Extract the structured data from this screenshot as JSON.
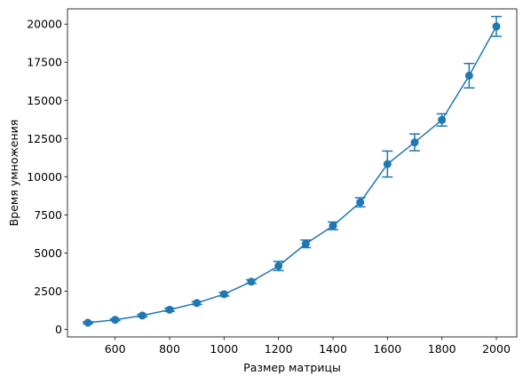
{
  "chart_data": {
    "type": "line",
    "title": "",
    "xlabel": "Размер матрицы",
    "ylabel": "Время умножения",
    "xlim": [
      425,
      2075
    ],
    "ylim": [
      -500,
      21000
    ],
    "x_ticks": [
      600,
      800,
      1000,
      1200,
      1400,
      1600,
      1800,
      2000
    ],
    "y_ticks": [
      0,
      2500,
      5000,
      7500,
      10000,
      12500,
      15000,
      17500,
      20000
    ],
    "grid": false,
    "legend": "none",
    "color": "#1f77b4",
    "series": [
      {
        "x": [
          500,
          600,
          700,
          800,
          900,
          1000,
          1100,
          1200,
          1300,
          1400,
          1500,
          1600,
          1700,
          1800,
          1900,
          2000
        ],
        "y": [
          430,
          620,
          900,
          1280,
          1720,
          2300,
          3120,
          4150,
          5600,
          6780,
          8320,
          10830,
          12250,
          13720,
          16620,
          19850
        ],
        "error": [
          60,
          60,
          80,
          100,
          100,
          120,
          120,
          300,
          250,
          250,
          300,
          850,
          550,
          400,
          800,
          650
        ]
      }
    ]
  }
}
